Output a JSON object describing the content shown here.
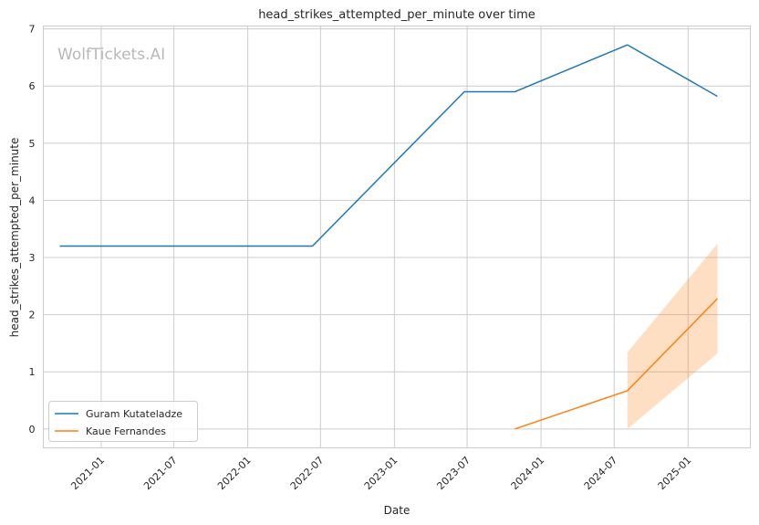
{
  "chart_data": {
    "type": "line",
    "title": "head_strikes_attempted_per_minute over time",
    "xlabel": "Date",
    "ylabel": "head_strikes_attempted_per_minute",
    "watermark": "WolfTickets.AI",
    "xlim": [
      "2020-08-10",
      "2025-06-05"
    ],
    "ylim": [
      -0.33,
      7.05
    ],
    "x_ticks": [
      "2021-01",
      "2021-07",
      "2022-01",
      "2022-07",
      "2023-01",
      "2023-07",
      "2024-01",
      "2024-07",
      "2025-01"
    ],
    "y_ticks": [
      0,
      1,
      2,
      3,
      4,
      5,
      6,
      7
    ],
    "grid": true,
    "legend_position": "lower-left",
    "series": [
      {
        "name": "Guram Kutateladze",
        "color": "#1f77b4",
        "x": [
          "2020-09-20",
          "2022-06-11",
          "2023-06-24",
          "2023-10-28",
          "2024-08-03",
          "2025-03-15"
        ],
        "y": [
          3.2,
          3.2,
          5.9,
          5.9,
          6.72,
          5.82
        ]
      },
      {
        "name": "Kaue Fernandes",
        "color": "#ff7f0e",
        "x": [
          "2023-10-28",
          "2024-08-03",
          "2025-03-15"
        ],
        "y": [
          0.0,
          0.67,
          2.28
        ],
        "band": {
          "x": [
            "2024-08-03",
            "2025-03-15"
          ],
          "lower": [
            0.0,
            1.32
          ],
          "upper": [
            1.34,
            3.24
          ]
        }
      }
    ]
  }
}
